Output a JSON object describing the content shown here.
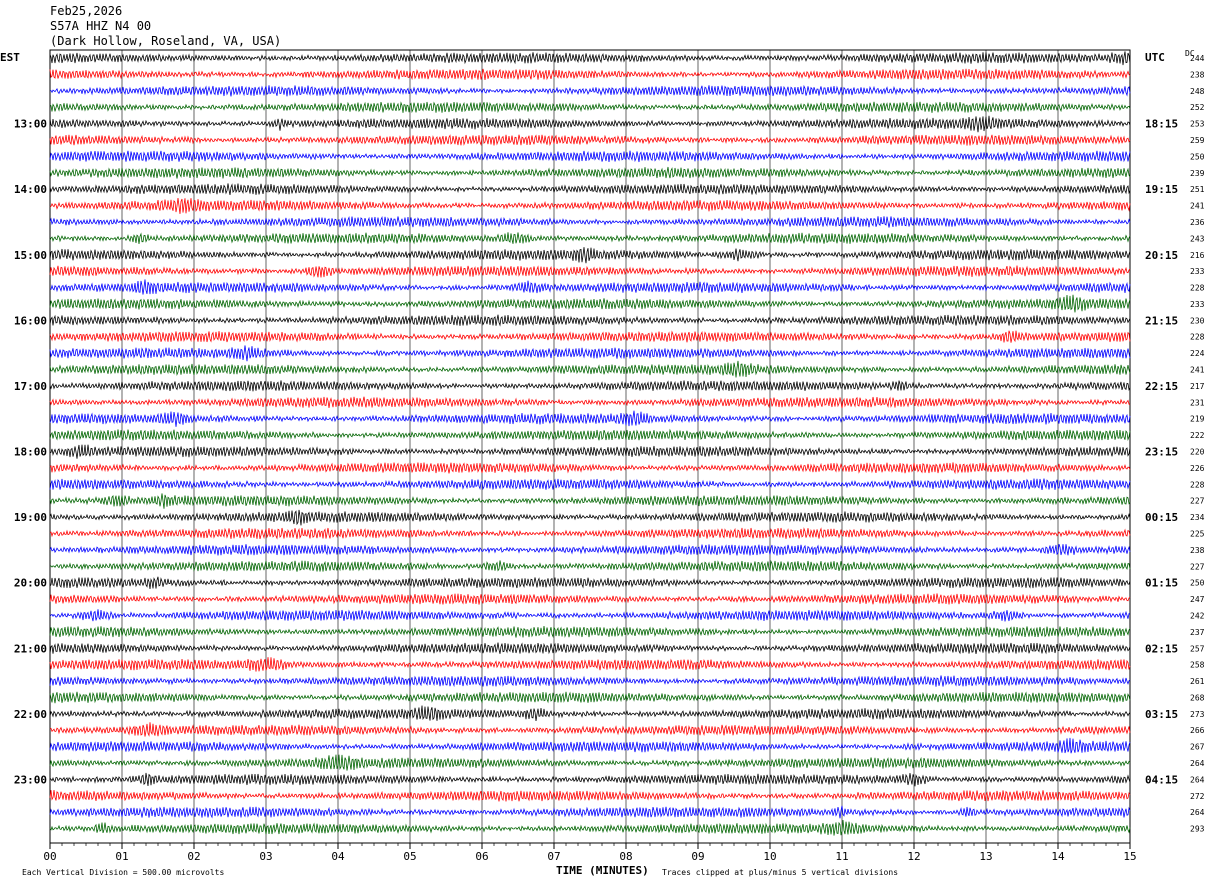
{
  "header": {
    "date": "Feb25,2026",
    "station": "S57A HHZ N4 00",
    "location": "(Dark Hollow, Roseland, VA, USA)"
  },
  "left_tz": "EST",
  "right_tz": "UTC",
  "dc_label": "DC",
  "footer": {
    "scale_note": "Each Vertical Division =  500.00 microvolts",
    "xlabel": "TIME (MINUTES)",
    "clip_note": "Traces clipped at plus/minus 5 vertical divisions"
  },
  "chart_data": {
    "type": "line",
    "xlabel": "TIME (MINUTES)",
    "xlim": [
      0,
      15
    ],
    "x_ticks": [
      "00",
      "01",
      "02",
      "03",
      "04",
      "05",
      "06",
      "07",
      "08",
      "09",
      "10",
      "11",
      "12",
      "13",
      "14",
      "15"
    ],
    "left_hour_labels": [
      "13:00",
      "14:00",
      "15:00",
      "16:00",
      "17:00",
      "18:00",
      "19:00",
      "20:00",
      "21:00",
      "22:00",
      "23:00"
    ],
    "right_hour_labels": [
      "18:15",
      "19:15",
      "20:15",
      "21:15",
      "22:15",
      "23:15",
      "00:15",
      "01:15",
      "02:15",
      "03:15",
      "04:15"
    ],
    "trace_colors": [
      "#000000",
      "#ff0000",
      "#0000ff",
      "#006400"
    ],
    "dc_values": [
      "244",
      "238",
      "248",
      "252",
      "253",
      "259",
      "250",
      "239",
      "251",
      "241",
      "236",
      "243",
      "216",
      "233",
      "228",
      "233",
      "230",
      "228",
      "224",
      "241",
      "217",
      "231",
      "219",
      "222",
      "220",
      "226",
      "228",
      "227",
      "234",
      "225",
      "238",
      "227",
      "250",
      "247",
      "242",
      "237",
      "257",
      "258",
      "261",
      "268",
      "273",
      "266",
      "267",
      "264",
      "264",
      "272",
      "264",
      "293"
    ]
  }
}
